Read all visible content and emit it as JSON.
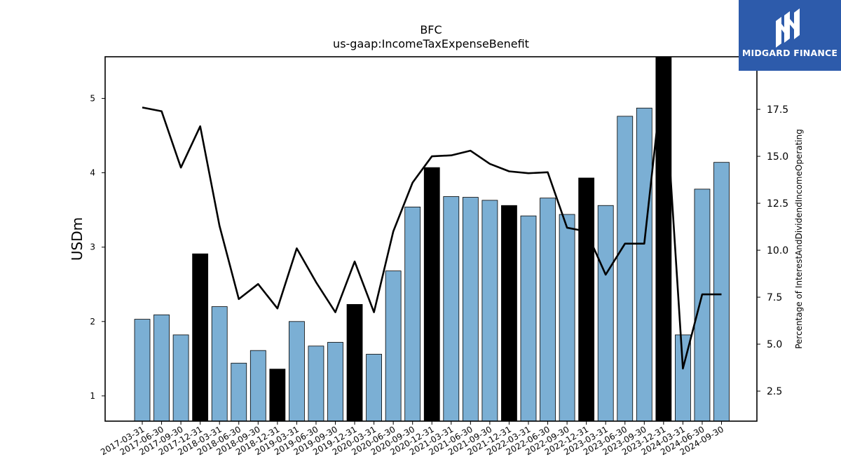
{
  "header": {
    "ticker": "BFC",
    "metric": "us-gaap:IncomeTaxExpenseBenefit"
  },
  "logo": {
    "text": "MIDGARD FINANCE",
    "color": "#2d5bab"
  },
  "colors": {
    "bar_quarter": "#7bafd4",
    "bar_year_end": "#000000",
    "line": "#000000"
  },
  "chart_data": {
    "type": "bar",
    "title": "BFC",
    "subtitle": "us-gaap:IncomeTaxExpenseBenefit",
    "ylabel": "USDm",
    "y2label": "Percentage of InterestAndDividendIncomeOperating",
    "ylim": [
      0.66,
      5.56
    ],
    "y2lim": [
      0.9,
      20.3
    ],
    "yticks": [
      "1",
      "2",
      "3",
      "4",
      "5"
    ],
    "y2ticks": [
      "2.5",
      "5.0",
      "7.5",
      "10.0",
      "12.5",
      "15.0",
      "17.5"
    ],
    "categories": [
      "2017-03-31",
      "2017-06-30",
      "2017-09-30",
      "2017-12-31",
      "2018-03-31",
      "2018-06-30",
      "2018-09-30",
      "2018-12-31",
      "2019-03-31",
      "2019-06-30",
      "2019-09-30",
      "2019-12-31",
      "2020-03-31",
      "2020-06-30",
      "2020-09-30",
      "2020-12-31",
      "2021-03-31",
      "2021-06-30",
      "2021-09-30",
      "2021-12-31",
      "2022-03-31",
      "2022-06-30",
      "2022-09-30",
      "2022-12-31",
      "2023-03-31",
      "2023-06-30",
      "2023-09-30",
      "2023-12-31",
      "2024-03-31",
      "2024-06-30",
      "2024-09-30"
    ],
    "series": [
      {
        "kind": "bar",
        "values": [
          2.03,
          2.09,
          1.82,
          2.91,
          2.2,
          1.44,
          1.61,
          1.36,
          2.0,
          1.67,
          1.72,
          2.23,
          1.56,
          2.68,
          3.54,
          4.07,
          3.68,
          3.67,
          3.63,
          3.56,
          3.42,
          3.66,
          3.44,
          3.93,
          3.56,
          4.76,
          4.87,
          5.56,
          1.82,
          3.78,
          4.14
        ]
      },
      {
        "kind": "line",
        "values": [
          17.6,
          17.4,
          14.4,
          16.6,
          11.3,
          7.4,
          8.2,
          6.9,
          10.1,
          8.3,
          6.7,
          9.4,
          6.7,
          11.0,
          13.6,
          15.0,
          15.05,
          15.3,
          14.6,
          14.2,
          14.1,
          14.15,
          11.2,
          11.0,
          8.7,
          10.35,
          10.35,
          19.7,
          3.7,
          7.65,
          7.65
        ]
      }
    ],
    "year_end_indices": [
      3,
      7,
      11,
      15,
      19,
      23,
      27
    ],
    "grid": false
  }
}
